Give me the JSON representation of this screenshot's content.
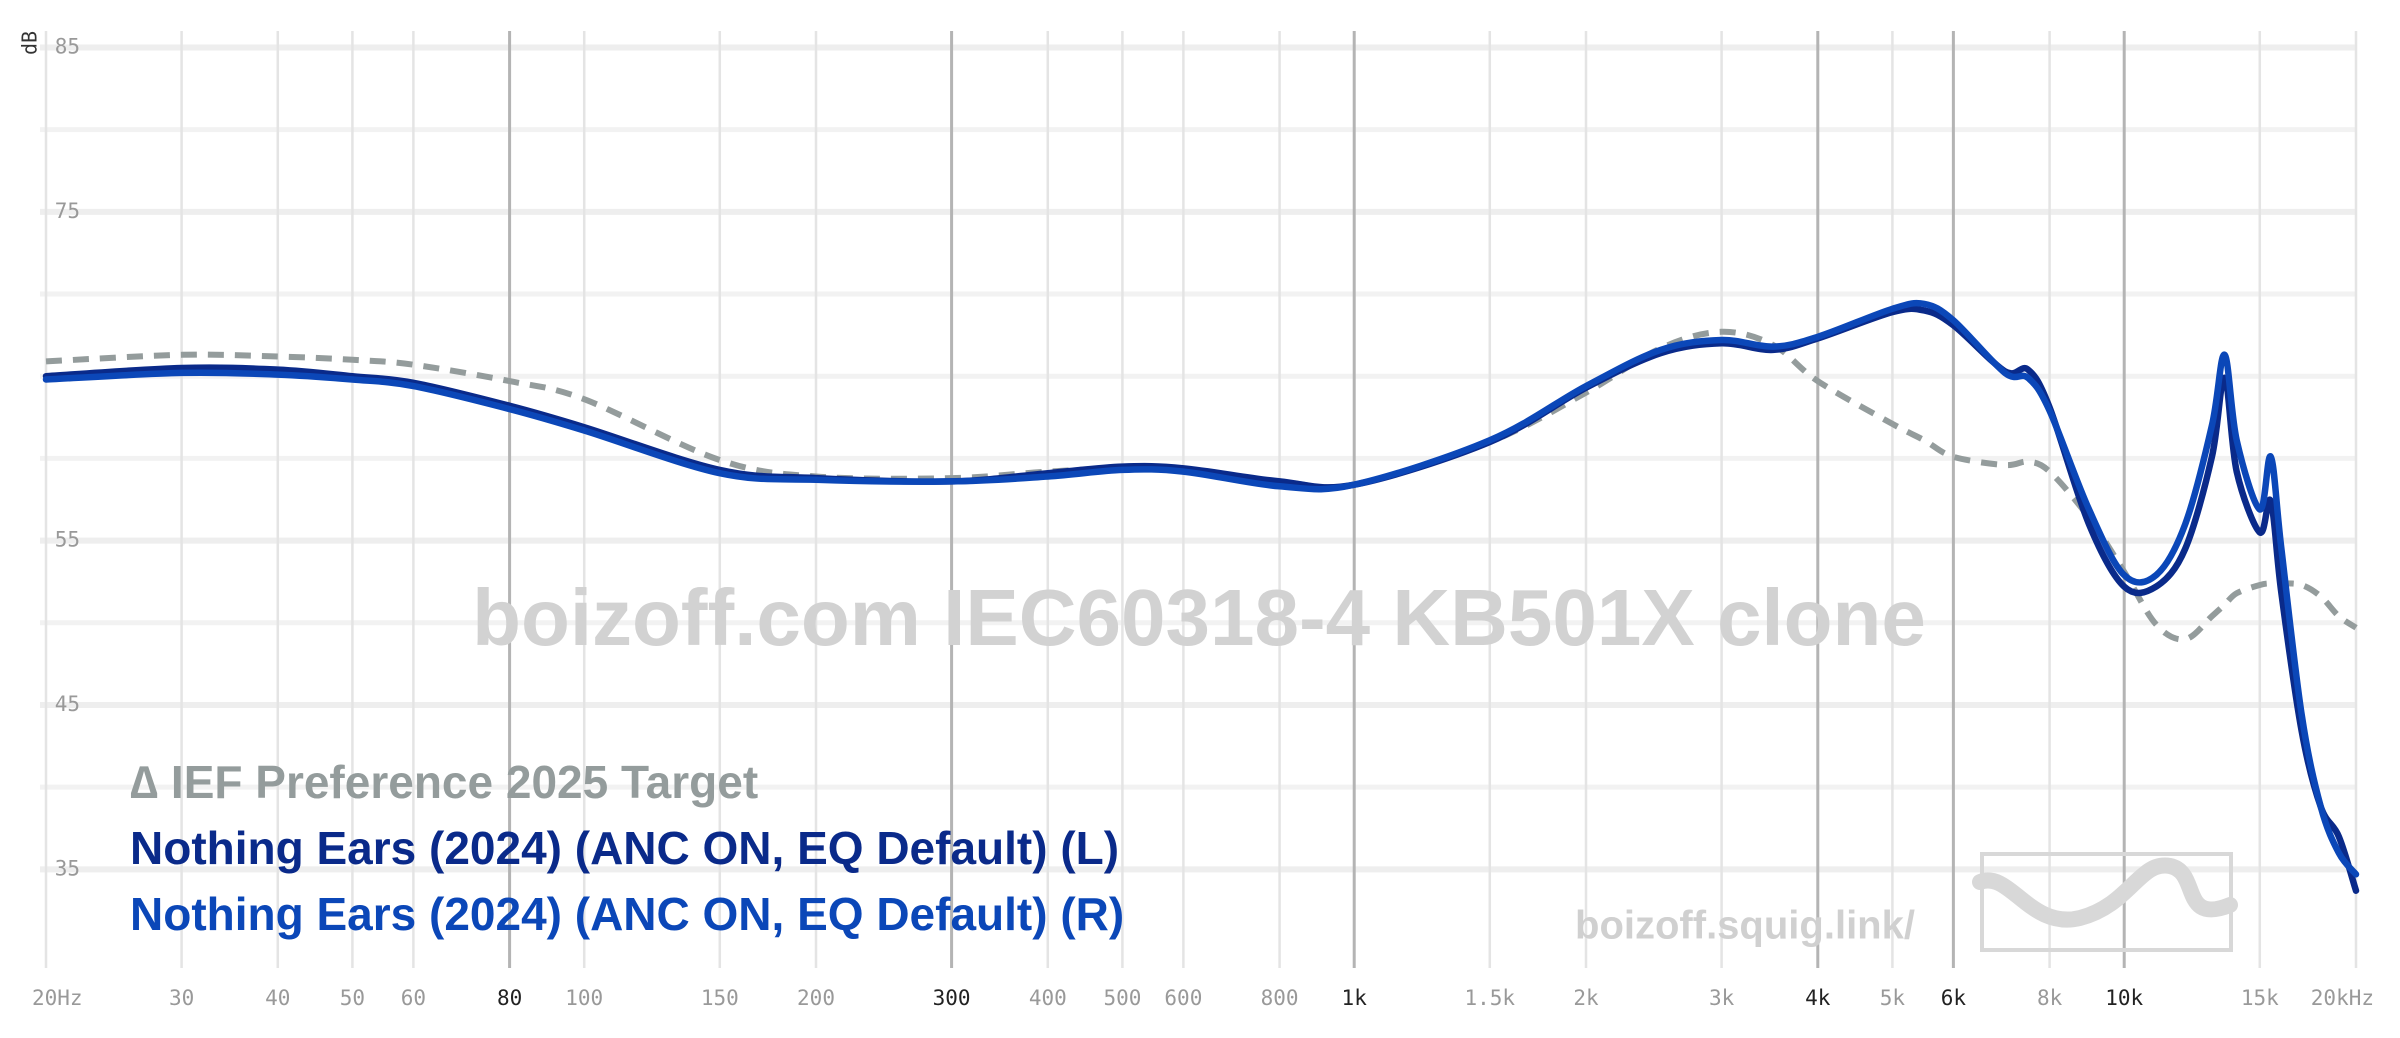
{
  "chart_data": {
    "type": "line",
    "watermark": "boizoff.com IEC60318-4 KB501X clone",
    "site_label": "boizoff.squig.link/",
    "y_unit": "dB",
    "log_x": true,
    "xlim": [
      20,
      20000
    ],
    "ylim": [
      29,
      86
    ],
    "yticks": [
      35,
      45,
      55,
      75,
      85
    ],
    "minor_yticks": [
      40,
      50,
      60,
      65,
      70,
      80
    ],
    "xticks": [
      {
        "value": 20,
        "label": "20Hz"
      },
      30,
      40,
      50,
      60,
      80,
      100,
      150,
      200,
      300,
      400,
      500,
      600,
      800,
      {
        "value": 1000,
        "label": "1k"
      },
      {
        "value": 1500,
        "label": "1.5k"
      },
      {
        "value": 2000,
        "label": "2k"
      },
      {
        "value": 3000,
        "label": "3k"
      },
      {
        "value": 4000,
        "label": "4k"
      },
      {
        "value": 5000,
        "label": "5k"
      },
      {
        "value": 6000,
        "label": "6k"
      },
      {
        "value": 8000,
        "label": "8k"
      },
      {
        "value": 10000,
        "label": "10k"
      },
      {
        "value": 15000,
        "label": "15k"
      },
      {
        "value": 20000,
        "label": "20kHz"
      }
    ],
    "bold_xticks": [
      80,
      300,
      1000,
      4000,
      6000,
      10000
    ],
    "x": [
      20,
      30,
      40,
      50,
      60,
      80,
      100,
      150,
      200,
      300,
      400,
      500,
      600,
      800,
      1000,
      1500,
      2000,
      2500,
      3000,
      3500,
      4000,
      5000,
      5500,
      6000,
      7000,
      7500,
      8000,
      9000,
      10000,
      11000,
      12000,
      13000,
      13500,
      14000,
      15000,
      15500,
      16000,
      17000,
      18000,
      19000,
      20000
    ],
    "series": [
      {
        "name": "∆ IEF Preference 2025 Target",
        "color": "#949c9c",
        "dashed": true,
        "values": [
          65.9,
          66.3,
          66.2,
          66.0,
          65.7,
          64.7,
          63.6,
          59.9,
          58.9,
          58.8,
          59.2,
          59.4,
          59.3,
          58.6,
          58.4,
          61.0,
          64.0,
          66.7,
          67.7,
          66.9,
          64.7,
          62.1,
          61.1,
          60.1,
          59.6,
          59.8,
          59.2,
          56.4,
          53.1,
          49.9,
          49.0,
          50.4,
          51.1,
          51.8,
          52.3,
          52.4,
          52.4,
          52.3,
          51.6,
          50.4,
          49.7
        ]
      },
      {
        "name": "Nothing Ears (2024) (ANC ON, EQ Default) (L)",
        "color": "#0a2a8a",
        "dashed": false,
        "values": [
          65.0,
          65.5,
          65.4,
          65.0,
          64.6,
          63.2,
          61.9,
          59.3,
          58.8,
          58.6,
          59.1,
          59.5,
          59.4,
          58.6,
          58.4,
          61.0,
          64.3,
          66.4,
          67.0,
          66.6,
          67.3,
          68.9,
          69.0,
          68.1,
          65.3,
          65.4,
          63.1,
          56.0,
          52.2,
          52.2,
          54.5,
          60.1,
          64.9,
          59.2,
          55.5,
          57.4,
          51.8,
          43.4,
          38.8,
          37.0,
          33.7
        ]
      },
      {
        "name": "Nothing Ears (2024) (ANC ON, EQ Default) (R)",
        "color": "#0b47b8",
        "dashed": false,
        "values": [
          64.8,
          65.2,
          65.1,
          64.8,
          64.4,
          63.0,
          61.7,
          59.1,
          58.7,
          58.6,
          58.9,
          59.3,
          59.2,
          58.3,
          58.4,
          61.1,
          64.4,
          66.6,
          67.2,
          66.8,
          67.4,
          69.1,
          69.4,
          68.4,
          65.2,
          64.9,
          62.9,
          56.9,
          52.9,
          52.9,
          56.0,
          62.0,
          66.3,
          61.1,
          56.9,
          60.1,
          54.5,
          44.4,
          38.8,
          36.0,
          34.7
        ]
      }
    ]
  }
}
